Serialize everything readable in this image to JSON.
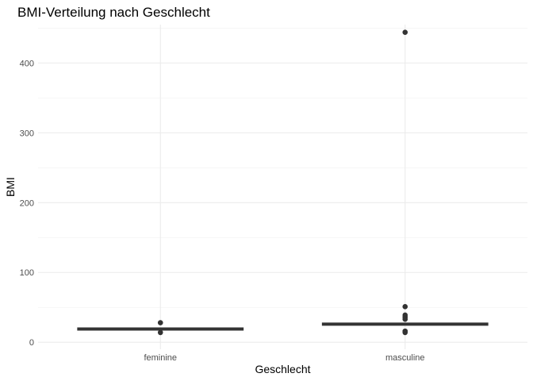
{
  "chart_data": {
    "type": "boxplot",
    "title": "BMI-Verteilung nach Geschlecht",
    "xlabel": "Geschlecht",
    "ylabel": "BMI",
    "categories": [
      "feminine",
      "masculine"
    ],
    "ylim": [
      -10,
      455
    ],
    "yticks": [
      0,
      100,
      200,
      300,
      400
    ],
    "yticks_minor": [
      50,
      150,
      250,
      350,
      450
    ],
    "grid": true,
    "colors": {
      "marks": "#333333",
      "grid": "#ebebeb",
      "text": "#4d4d4d"
    },
    "groups": [
      {
        "category": "feminine",
        "median": 19,
        "points": [
          28,
          14
        ]
      },
      {
        "category": "masculine",
        "median": 26,
        "points": [
          444,
          51,
          39,
          36,
          33,
          16,
          14
        ]
      }
    ]
  }
}
